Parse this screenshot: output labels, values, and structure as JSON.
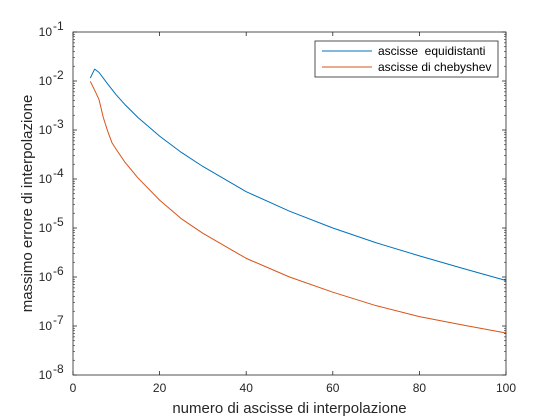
{
  "chart_data": {
    "type": "line",
    "title": "",
    "xlabel": "numero di ascisse di interpolazione",
    "ylabel": "massimo errore di interpolazione",
    "xlim": [
      0,
      100
    ],
    "ylim": [
      1e-08,
      0.1
    ],
    "yscale": "log",
    "grid": false,
    "legend_position": "top-right",
    "x_ticks": [
      {
        "value": 0,
        "label": "0"
      },
      {
        "value": 20,
        "label": "20"
      },
      {
        "value": 40,
        "label": "40"
      },
      {
        "value": 60,
        "label": "60"
      },
      {
        "value": 80,
        "label": "80"
      },
      {
        "value": 100,
        "label": "100"
      }
    ],
    "y_ticks": [
      {
        "value": 1e-08,
        "base": "10",
        "exp": "-8"
      },
      {
        "value": 1e-07,
        "base": "10",
        "exp": "-7"
      },
      {
        "value": 1e-06,
        "base": "10",
        "exp": "-6"
      },
      {
        "value": 1e-05,
        "base": "10",
        "exp": "-5"
      },
      {
        "value": 0.0001,
        "base": "10",
        "exp": "-4"
      },
      {
        "value": 0.001,
        "base": "10",
        "exp": "-3"
      },
      {
        "value": 0.01,
        "base": "10",
        "exp": "-2"
      },
      {
        "value": 0.1,
        "base": "10",
        "exp": "-1"
      }
    ],
    "series": [
      {
        "name": "ascisse  equidistanti",
        "color": "#0072BD",
        "x": [
          4,
          5,
          6,
          8,
          10,
          12,
          15,
          20,
          25,
          30,
          40,
          50,
          60,
          70,
          80,
          90,
          100
        ],
        "y": [
          0.0115,
          0.0175,
          0.015,
          0.0087,
          0.0052,
          0.0033,
          0.0018,
          0.00075,
          0.00035,
          0.00018,
          5.5e-05,
          2.2e-05,
          1e-05,
          5e-06,
          2.7e-06,
          1.5e-06,
          8.5e-07
        ]
      },
      {
        "name": "ascisse di chebyshev",
        "color": "#D95319",
        "x": [
          4,
          5,
          6,
          7,
          8,
          9,
          10,
          12,
          15,
          20,
          25,
          30,
          40,
          50,
          60,
          70,
          80,
          90,
          100
        ],
        "y": [
          0.0098,
          0.0065,
          0.0042,
          0.0018,
          0.00095,
          0.00055,
          0.0004,
          0.00022,
          0.000105,
          3.7e-05,
          1.55e-05,
          7.8e-06,
          2.4e-06,
          1e-06,
          4.9e-07,
          2.6e-07,
          1.55e-07,
          1.05e-07,
          7.2e-08
        ]
      }
    ]
  }
}
